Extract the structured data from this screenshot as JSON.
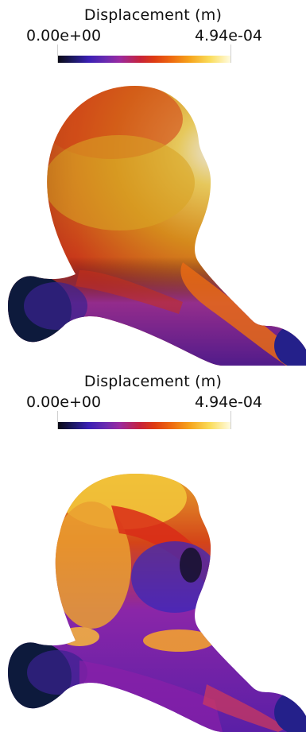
{
  "panels": [
    {
      "legend": {
        "title": "Displacement (m)",
        "min_label": "0.00e+00",
        "max_label": "4.94e-04",
        "min_value": 0.0,
        "max_value": 0.000494,
        "colormap": "black-body"
      }
    },
    {
      "legend": {
        "title": "Displacement (m)",
        "min_label": "0.00e+00",
        "max_label": "4.94e-04",
        "min_value": 0.0,
        "max_value": 0.000494,
        "colormap": "black-body"
      }
    }
  ],
  "colors": {
    "background": "#ffffff",
    "text": "#111111"
  }
}
